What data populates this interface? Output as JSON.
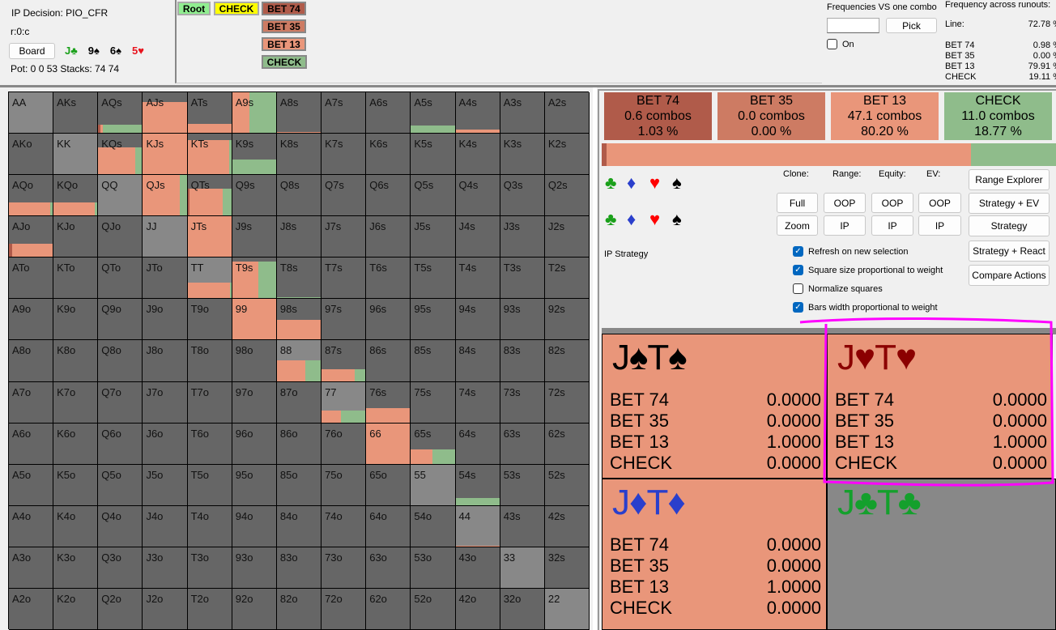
{
  "info": {
    "decision": "IP Decision:  PIO_CFR",
    "line": "r:0:c",
    "board_button": "Board",
    "board": [
      {
        "card": "J♣",
        "color": "#1aa01a"
      },
      {
        "card": "9♠",
        "color": "#000000"
      },
      {
        "card": "6♠",
        "color": "#000000"
      },
      {
        "card": "5♥",
        "color": "#e8141e"
      }
    ],
    "pot": "Pot: 0 0 53 Stacks: 74 74"
  },
  "tree": {
    "root": "Root",
    "check": "CHECK",
    "actions": [
      "BET 74",
      "BET 35",
      "BET 13",
      "CHECK"
    ]
  },
  "freq_combo": {
    "title": "Frequencies VS one combo",
    "input": "",
    "pick": "Pick",
    "on_label": "On",
    "on_checked": false
  },
  "runouts": {
    "title": "Frequency across runouts:",
    "line_label": "Line:",
    "line_value": "72.78 %",
    "rows": [
      {
        "label": "BET 74",
        "value": "0.98 %"
      },
      {
        "label": "BET 35",
        "value": "0.00 %"
      },
      {
        "label": "BET 13",
        "value": "79.91 %"
      },
      {
        "label": "CHECK",
        "value": "19.11 %"
      }
    ]
  },
  "colors": {
    "bet74": "#b05b4a",
    "bet35": "#cd7b63",
    "bet13": "#e9967a",
    "check": "#8fbc8b",
    "root": "#90ee90",
    "check_node": "#ffff00",
    "cell_bg": "#666666",
    "pair_bg": "#888888"
  },
  "actions": [
    {
      "name": "BET 74",
      "combos": "0.6 combos",
      "pct": "1.03 %",
      "freq": 1.03
    },
    {
      "name": "BET 35",
      "combos": "0.0 combos",
      "pct": "0.00 %",
      "freq": 0.0
    },
    {
      "name": "BET 13",
      "combos": "47.1 combos",
      "pct": "80.20 %",
      "freq": 80.2
    },
    {
      "name": "CHECK",
      "combos": "11.0 combos",
      "pct": "18.77 %",
      "freq": 18.77
    }
  ],
  "controls": {
    "clone": "Clone:",
    "range": "Range:",
    "equity": "Equity:",
    "ev": "EV:",
    "full": "Full",
    "zoom": "Zoom",
    "oop": "OOP",
    "ip": "IP",
    "strategy_label": "IP Strategy",
    "checkboxes": [
      {
        "label": "Refresh on new selection",
        "checked": true
      },
      {
        "label": "Square size proportional to weight",
        "checked": true
      },
      {
        "label": "Normalize squares",
        "checked": false
      },
      {
        "label": "Bars width proportional to weight",
        "checked": true
      }
    ],
    "buttons": [
      "Range Explorer",
      "Strategy + EV",
      "Strategy",
      "Strategy + React",
      "Compare Actions"
    ]
  },
  "grid": {
    "hands": [
      [
        "AA",
        "AKs",
        "AQs",
        "AJs",
        "ATs",
        "A9s",
        "A8s",
        "A7s",
        "A6s",
        "A5s",
        "A4s",
        "A3s",
        "A2s"
      ],
      [
        "AKo",
        "KK",
        "KQs",
        "KJs",
        "KTs",
        "K9s",
        "K8s",
        "K7s",
        "K6s",
        "K5s",
        "K4s",
        "K3s",
        "K2s"
      ],
      [
        "AQo",
        "KQo",
        "QQ",
        "QJs",
        "QTs",
        "Q9s",
        "Q8s",
        "Q7s",
        "Q6s",
        "Q5s",
        "Q4s",
        "Q3s",
        "Q2s"
      ],
      [
        "AJo",
        "KJo",
        "QJo",
        "JJ",
        "JTs",
        "J9s",
        "J8s",
        "J7s",
        "J6s",
        "J5s",
        "J4s",
        "J3s",
        "J2s"
      ],
      [
        "ATo",
        "KTo",
        "QTo",
        "JTo",
        "TT",
        "T9s",
        "T8s",
        "T7s",
        "T6s",
        "T5s",
        "T4s",
        "T3s",
        "T2s"
      ],
      [
        "A9o",
        "K9o",
        "Q9o",
        "J9o",
        "T9o",
        "99",
        "98s",
        "97s",
        "96s",
        "95s",
        "94s",
        "93s",
        "92s"
      ],
      [
        "A8o",
        "K8o",
        "Q8o",
        "J8o",
        "T8o",
        "98o",
        "88",
        "87s",
        "86s",
        "85s",
        "84s",
        "83s",
        "82s"
      ],
      [
        "A7o",
        "K7o",
        "Q7o",
        "J7o",
        "T7o",
        "97o",
        "87o",
        "77",
        "76s",
        "75s",
        "74s",
        "73s",
        "72s"
      ],
      [
        "A6o",
        "K6o",
        "Q6o",
        "J6o",
        "T6o",
        "96o",
        "86o",
        "76o",
        "66",
        "65s",
        "64s",
        "63s",
        "62s"
      ],
      [
        "A5o",
        "K5o",
        "Q5o",
        "J5o",
        "T5o",
        "95o",
        "85o",
        "75o",
        "65o",
        "55",
        "54s",
        "53s",
        "52s"
      ],
      [
        "A4o",
        "K4o",
        "Q4o",
        "J4o",
        "T4o",
        "94o",
        "84o",
        "74o",
        "64o",
        "54o",
        "44",
        "43s",
        "42s"
      ],
      [
        "A3o",
        "K3o",
        "Q3o",
        "J3o",
        "T3o",
        "93o",
        "83o",
        "73o",
        "63o",
        "53o",
        "43o",
        "33",
        "32s"
      ],
      [
        "A2o",
        "K2o",
        "Q2o",
        "J2o",
        "T2o",
        "92o",
        "82o",
        "72o",
        "62o",
        "52o",
        "42o",
        "32o",
        "22"
      ]
    ],
    "strategy": {
      "AQs": {
        "w": 0.2,
        "s": [
          0.05,
          0,
          0.05,
          0.9
        ]
      },
      "AJs": {
        "w": 0.76,
        "s": [
          0,
          0,
          1,
          0
        ]
      },
      "ATs": {
        "w": 0.22,
        "s": [
          0,
          0,
          1,
          0
        ]
      },
      "A9s": {
        "w": 1,
        "s": [
          0,
          0,
          0.4,
          0.6
        ]
      },
      "A8s": {
        "w": 0.03,
        "s": [
          0,
          0,
          1,
          0
        ]
      },
      "A5s": {
        "w": 0.18,
        "s": [
          0,
          0,
          0,
          1
        ]
      },
      "A4s": {
        "w": 0.08,
        "s": [
          0,
          0,
          1,
          0
        ]
      },
      "KQs": {
        "w": 0.66,
        "s": [
          0,
          0,
          0.84,
          0.16
        ]
      },
      "KJs": {
        "w": 1,
        "s": [
          0,
          0,
          1,
          0
        ]
      },
      "KTs": {
        "w": 0.85,
        "s": [
          0,
          0,
          0.95,
          0.05
        ]
      },
      "K9s": {
        "w": 0.36,
        "s": [
          0,
          0,
          0,
          1
        ]
      },
      "AQo": {
        "w": 0.33,
        "s": [
          0,
          0,
          0.95,
          0.05
        ]
      },
      "KQo": {
        "w": 0.33,
        "s": [
          0,
          0,
          0.94,
          0.06
        ]
      },
      "QJs": {
        "w": 1,
        "s": [
          0,
          0,
          0.85,
          0.15
        ]
      },
      "QTs": {
        "w": 0.66,
        "s": [
          0.05,
          0,
          0.75,
          0.2
        ]
      },
      "AJo": {
        "w": 0.32,
        "s": [
          0.08,
          0,
          0.92,
          0
        ]
      },
      "JTs": {
        "w": 1,
        "s": [
          0,
          0,
          1,
          0
        ]
      },
      "TT": {
        "w": 0.38,
        "s": [
          0,
          0,
          0.97,
          0.03
        ]
      },
      "T9s": {
        "w": 0.9,
        "s": [
          0,
          0,
          0.6,
          0.4
        ]
      },
      "T8s": {
        "w": 0.03,
        "s": [
          0,
          0,
          0,
          1
        ]
      },
      "99": {
        "w": 1,
        "s": [
          0,
          0,
          1,
          0
        ]
      },
      "98s": {
        "w": 0.48,
        "s": [
          0,
          0,
          1,
          0
        ]
      },
      "88": {
        "w": 0.5,
        "s": [
          0,
          0,
          0.65,
          0.35
        ]
      },
      "87s": {
        "w": 0.3,
        "s": [
          0,
          0,
          0.75,
          0.25
        ]
      },
      "77": {
        "w": 0.3,
        "s": [
          0,
          0,
          0.45,
          0.55
        ]
      },
      "76s": {
        "w": 0.36,
        "s": [
          0,
          0,
          1,
          0
        ]
      },
      "66": {
        "w": 1,
        "s": [
          0,
          0,
          1,
          0
        ]
      },
      "65s": {
        "w": 0.36,
        "s": [
          0,
          0,
          0.5,
          0.5
        ]
      },
      "54s": {
        "w": 0.18,
        "s": [
          0,
          0,
          0,
          1
        ]
      },
      "44": {
        "w": 0.02,
        "s": [
          0,
          0,
          1,
          0
        ]
      }
    }
  },
  "combos": [
    {
      "title": "J♠T♠",
      "color": "#000000",
      "bg": "#e9967a",
      "rows": [
        [
          "BET 74",
          "0.0000"
        ],
        [
          "BET 35",
          "0.0000"
        ],
        [
          "BET 13",
          "1.0000"
        ],
        [
          "CHECK",
          "0.0000"
        ]
      ]
    },
    {
      "title": "J♥T♥",
      "color": "#8b0000",
      "bg": "#e9967a",
      "highlighted": true,
      "rows": [
        [
          "BET 74",
          "0.0000"
        ],
        [
          "BET 35",
          "0.0000"
        ],
        [
          "BET 13",
          "1.0000"
        ],
        [
          "CHECK",
          "0.0000"
        ]
      ]
    },
    {
      "title": "J♦T♦",
      "color": "#2a3fcc",
      "bg": "#e9967a",
      "rows": [
        [
          "BET 74",
          "0.0000"
        ],
        [
          "BET 35",
          "0.0000"
        ],
        [
          "BET 13",
          "1.0000"
        ],
        [
          "CHECK",
          "0.0000"
        ]
      ]
    },
    {
      "title": "J♣T♣",
      "color": "#14a02c",
      "bg": "#888888",
      "rows": []
    }
  ]
}
